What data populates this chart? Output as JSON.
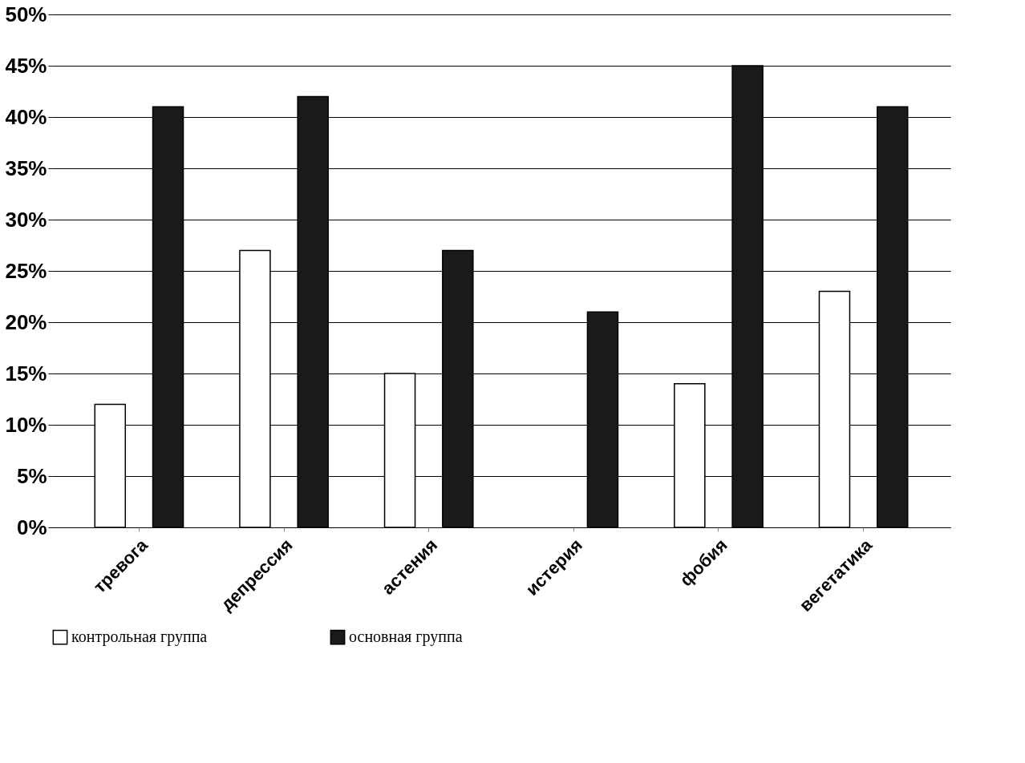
{
  "chart_data": {
    "type": "bar",
    "categories": [
      "тревога",
      "депрессия",
      "астения",
      "истерия",
      "фобия",
      "вегетатика"
    ],
    "series": [
      {
        "name": "контрольная группа",
        "color": "#ffffff",
        "values": [
          12,
          27,
          15,
          null,
          14,
          23
        ]
      },
      {
        "name": "основная группа",
        "color": "#1a1a1a",
        "values": [
          41,
          42,
          27,
          21,
          45,
          41
        ]
      }
    ],
    "ylim": [
      0,
      50
    ],
    "yticks": [
      {
        "value": 0,
        "label": "0%"
      },
      {
        "value": 5,
        "label": "5%"
      },
      {
        "value": 10,
        "label": "10%"
      },
      {
        "value": 15,
        "label": "15%"
      },
      {
        "value": 20,
        "label": "20%"
      },
      {
        "value": 25,
        "label": "25%"
      },
      {
        "value": 30,
        "label": "30%"
      },
      {
        "value": 35,
        "label": "35%"
      },
      {
        "value": 40,
        "label": "40%"
      },
      {
        "value": 45,
        "label": "45%"
      },
      {
        "value": 50,
        "label": "50%"
      }
    ],
    "grid": "y",
    "legend": "bottom"
  }
}
